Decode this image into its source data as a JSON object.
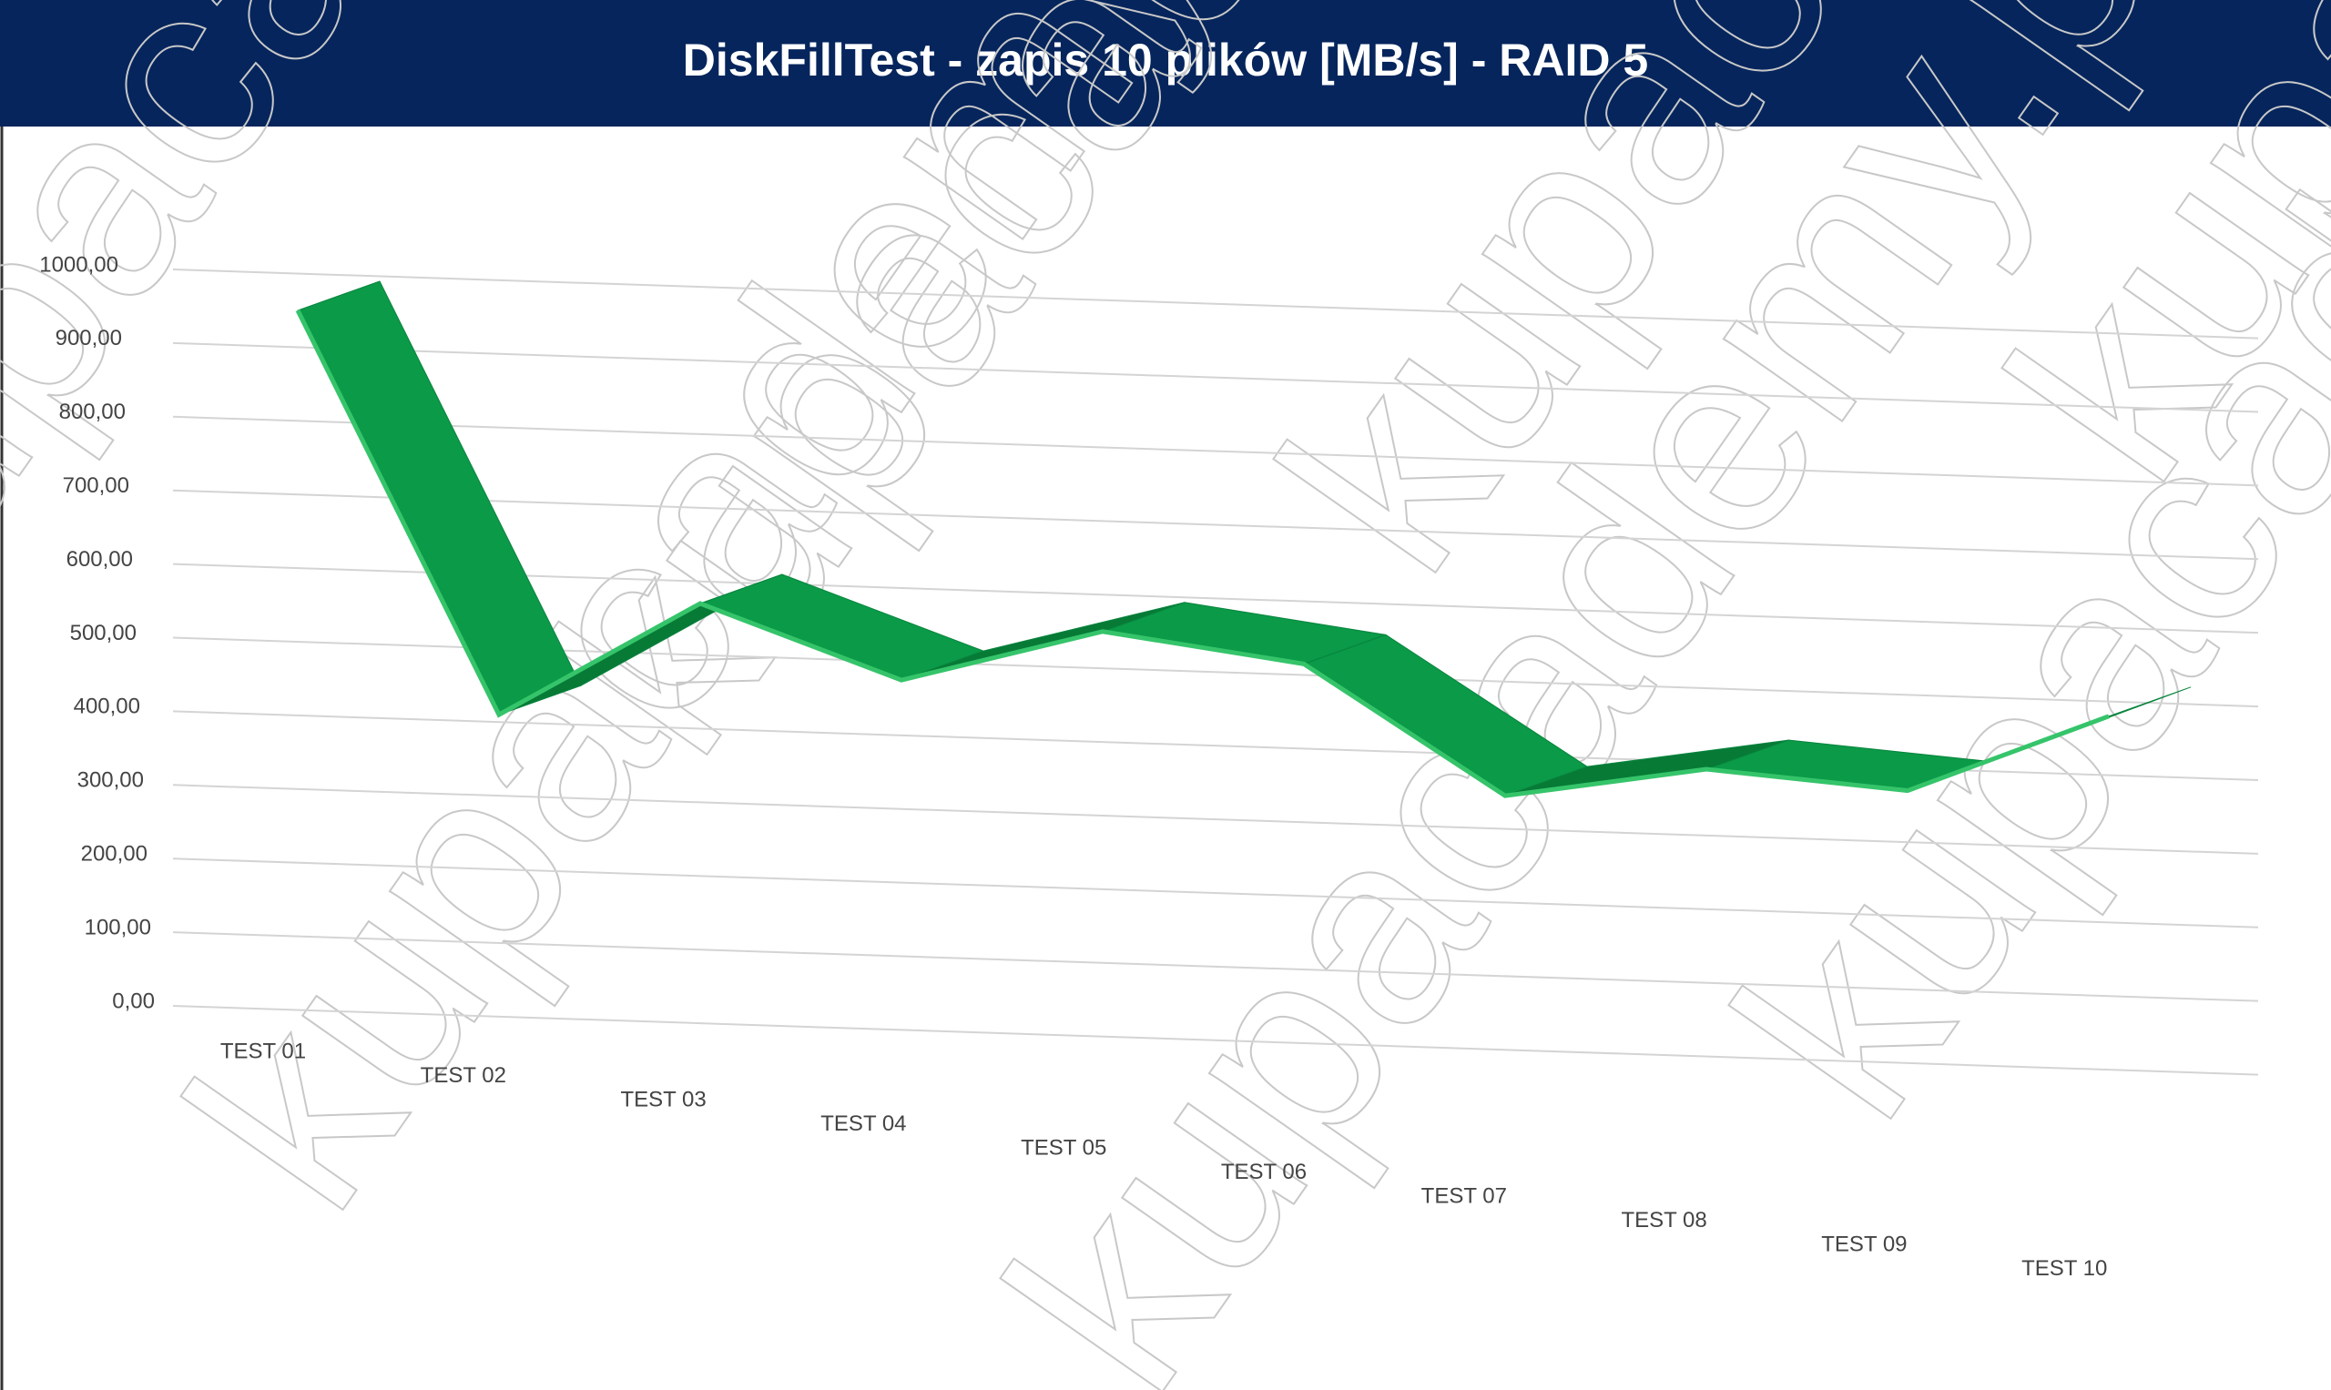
{
  "chart_data": {
    "type": "ribbon3d",
    "title": "DiskFillTest - zapis 10 plików [MB/s] - RAID 5",
    "categories": [
      "TEST 01",
      "TEST 02",
      "TEST 03",
      "TEST 04",
      "TEST 05",
      "TEST 06",
      "TEST 07",
      "TEST 08",
      "TEST 09",
      "TEST 10"
    ],
    "values": [
      950,
      410,
      570,
      475,
      550,
      515,
      345,
      390,
      370,
      480
    ],
    "color": "#0a9a48",
    "ylim": [
      0,
      1000
    ],
    "yticks": [
      {
        "value": 0,
        "label": "0,00"
      },
      {
        "value": 100,
        "label": "100,00"
      },
      {
        "value": 200,
        "label": "200,00"
      },
      {
        "value": 300,
        "label": "300,00"
      },
      {
        "value": 400,
        "label": "400,00"
      },
      {
        "value": 500,
        "label": "500,00"
      },
      {
        "value": 600,
        "label": "600,00"
      },
      {
        "value": 700,
        "label": "700,00"
      },
      {
        "value": 800,
        "label": "800,00"
      },
      {
        "value": 900,
        "label": "900,00"
      },
      {
        "value": 1000,
        "label": "1000,00"
      }
    ],
    "grid": true
  },
  "watermark": "kupacademy.pl"
}
